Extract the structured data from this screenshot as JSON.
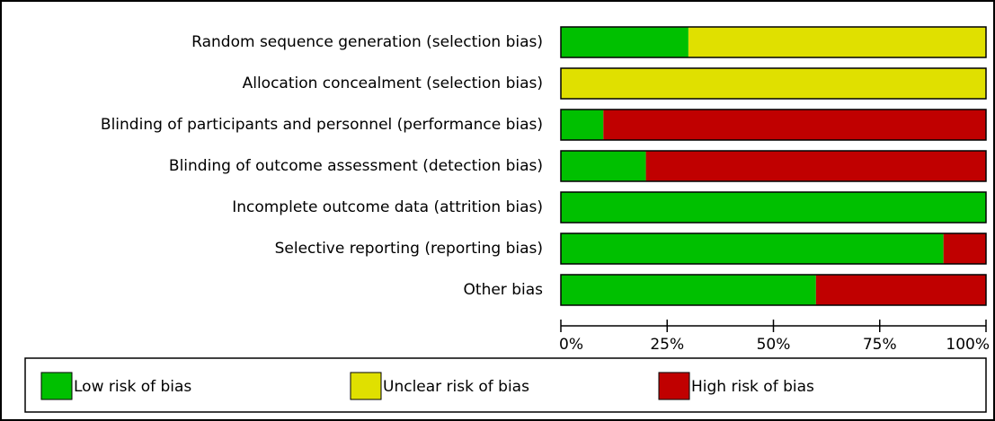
{
  "chart_data": {
    "type": "stacked-bar-horizontal",
    "categories": [
      "Random sequence generation (selection bias)",
      "Allocation concealment (selection bias)",
      "Blinding of participants and personnel (performance bias)",
      "Blinding of outcome assessment (detection bias)",
      "Incomplete outcome data (attrition bias)",
      "Selective reporting (reporting bias)",
      "Other bias"
    ],
    "series": [
      {
        "name": "Low risk of bias",
        "color": "#00c000",
        "values": [
          30,
          0,
          10,
          20,
          100,
          90,
          60
        ]
      },
      {
        "name": "Unclear risk of bias",
        "color": "#e0e000",
        "values": [
          70,
          100,
          0,
          0,
          0,
          0,
          0
        ]
      },
      {
        "name": "High risk of bias",
        "color": "#c00000",
        "values": [
          0,
          0,
          90,
          80,
          0,
          10,
          40
        ]
      }
    ],
    "xlim": [
      0,
      100
    ],
    "xticks": [
      {
        "value": 0,
        "label": "0%"
      },
      {
        "value": 25,
        "label": "25%"
      },
      {
        "value": 50,
        "label": "50%"
      },
      {
        "value": 75,
        "label": "75%"
      },
      {
        "value": 100,
        "label": "100%"
      }
    ]
  }
}
